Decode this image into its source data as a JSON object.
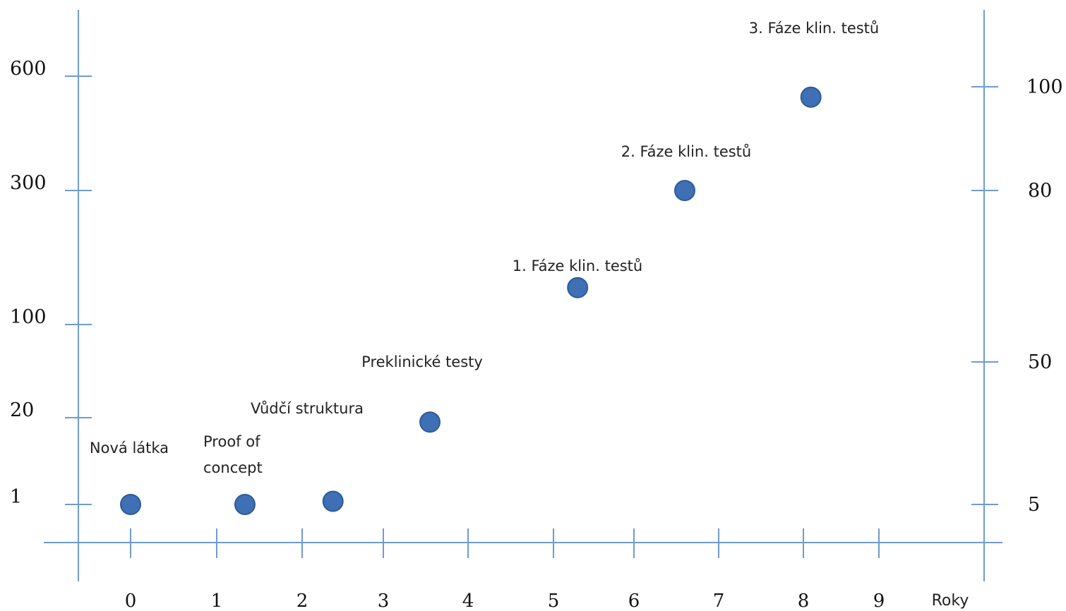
{
  "chart_data": {
    "type": "scatter",
    "xlabel": "Roky",
    "x_ticks": [
      0,
      1,
      2,
      3,
      4,
      5,
      6,
      7,
      8,
      9
    ],
    "xlim": [
      0,
      9
    ],
    "y_left_ticks": [
      1,
      20,
      100,
      300,
      600
    ],
    "y_right_ticks": [
      5,
      50,
      80,
      100
    ],
    "marker_color": "#3f6fb5",
    "axis_color": "#6f9bd0",
    "points": [
      {
        "x": 0.0,
        "y_right": 5,
        "label": ""
      },
      {
        "x": 1.33,
        "y_right": 5,
        "label": ""
      },
      {
        "x": 2.38,
        "y_right": 6,
        "label": ""
      },
      {
        "x": 3.55,
        "y_right": 31,
        "label": ""
      },
      {
        "x": 5.3,
        "y_right": 63,
        "label": ""
      },
      {
        "x": 6.6,
        "y_right": 80,
        "label": ""
      },
      {
        "x": 8.1,
        "y_right": 98,
        "label": ""
      }
    ],
    "annotations": [
      {
        "text": "Nová látka",
        "near_x": 0.0
      },
      {
        "lines": [
          "Proof  of",
          "concept"
        ],
        "near_x": 1.2
      },
      {
        "text": "Vůdčí struktura",
        "near_x": 2.1
      },
      {
        "text": "Preklinické testy",
        "near_x": 3.45
      },
      {
        "text": "1. Fáze klin. testů",
        "near_x": 5.3
      },
      {
        "text": "2. Fáze klin. testů",
        "near_x": 6.6
      },
      {
        "text": "3. Fáze klin. testů",
        "near_x": 8.0
      }
    ]
  }
}
